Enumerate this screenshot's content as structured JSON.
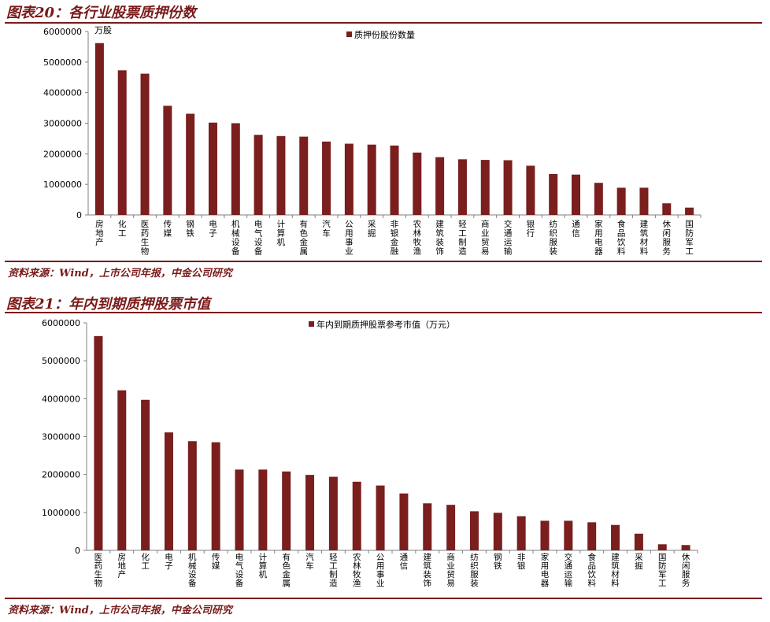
{
  "figures": [
    {
      "title": "图表20：各行业股票质押份数",
      "source": "资料来源：Wind，上市公司年报，中金公司研究"
    },
    {
      "title": "图表21：年内到期质押股票市值",
      "source": "资料来源：Wind，上市公司年报，中金公司研究"
    }
  ],
  "colors": {
    "bar": "#7a1e1e",
    "accent": "#7a1a1a"
  },
  "chart_data": [
    {
      "type": "bar",
      "title": "",
      "unit_label": "万股",
      "series": [
        {
          "name": "质押份股份数量",
          "values": [
            5620000,
            4730000,
            4620000,
            3570000,
            3310000,
            3020000,
            3000000,
            2620000,
            2580000,
            2560000,
            2400000,
            2330000,
            2300000,
            2270000,
            2040000,
            1890000,
            1820000,
            1800000,
            1790000,
            1610000,
            1340000,
            1320000,
            1050000,
            890000,
            890000,
            380000,
            240000
          ]
        }
      ],
      "categories": [
        "房地产",
        "化工",
        "医药生物",
        "传媒",
        "钢铁",
        "电子",
        "机械设备",
        "电气设备",
        "计算机",
        "有色金属",
        "汽车",
        "公用事业",
        "采掘",
        "非银金融",
        "农林牧渔",
        "建筑装饰",
        "轻工制造",
        "商业贸易",
        "交通运输",
        "银行",
        "纺织服装",
        "通信",
        "家用电器",
        "食品饮料",
        "建筑材料",
        "休闲服务",
        "国防军工"
      ],
      "ylim": [
        0,
        6000000
      ],
      "yticks": [
        "0",
        "1000000",
        "2000000",
        "3000000",
        "4000000",
        "5000000",
        "6000000"
      ],
      "grid": false,
      "legend": "top-center"
    },
    {
      "type": "bar",
      "title": "",
      "series": [
        {
          "name": "年内到期质押股票参考市值（万元）",
          "values": [
            5650000,
            4220000,
            3970000,
            3110000,
            2880000,
            2850000,
            2130000,
            2130000,
            2080000,
            1990000,
            1940000,
            1810000,
            1710000,
            1500000,
            1240000,
            1200000,
            1030000,
            990000,
            900000,
            780000,
            780000,
            740000,
            670000,
            440000,
            160000,
            140000
          ]
        }
      ],
      "categories": [
        "医药生物",
        "房地产",
        "化工",
        "电子",
        "机械设备",
        "传媒",
        "电气设备",
        "计算机",
        "有色金属",
        "汽车",
        "轻工制造",
        "农林牧渔",
        "公用事业",
        "通信",
        "建筑装饰",
        "商业贸易",
        "纺织服装",
        "钢铁",
        "非银",
        "家用电器",
        "交通运输",
        "食品饮料",
        "建筑材料",
        "采掘",
        "国防军工",
        "休闲服务"
      ],
      "ylim": [
        0,
        6000000
      ],
      "yticks": [
        "0",
        "1000000",
        "2000000",
        "3000000",
        "4000000",
        "5000000",
        "6000000"
      ],
      "grid": false,
      "legend": "top-center"
    }
  ]
}
